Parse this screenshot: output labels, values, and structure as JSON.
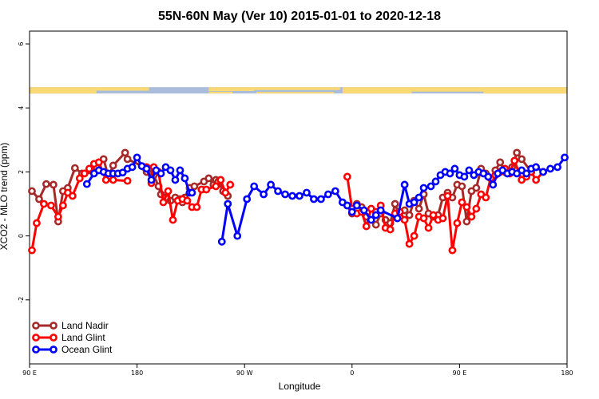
{
  "chart_data": {
    "type": "line",
    "title": "55N-60N May (Ver 10)   2015-01-01 to 2020-12-18",
    "xlabel": "Longitude",
    "ylabel": "XCO2 - MLO trend (ppm)",
    "x_ticks": [
      {
        "pos": 0,
        "label": "90 E"
      },
      {
        "pos": 90,
        "label": "180"
      },
      {
        "pos": 180,
        "label": "90 W"
      },
      {
        "pos": 270,
        "label": "0"
      },
      {
        "pos": 360,
        "label": "90 E"
      },
      {
        "pos": 450,
        "label": "180"
      }
    ],
    "xlim": [
      0,
      450
    ],
    "y_ticks": [
      -2,
      0,
      2,
      4,
      6
    ],
    "ylim": [
      -4,
      6.4
    ],
    "grid": false,
    "legend_position": "bottom-left",
    "map_strip": {
      "ymin": 4.45,
      "ymax": 4.65,
      "land_color": "#f9d976",
      "ocean_color": "#a9bcd9"
    },
    "series": [
      {
        "name": "Land Nadir",
        "color": "#a52a2a",
        "x": [
          2,
          8,
          14,
          20,
          24,
          28,
          32,
          38,
          44,
          50,
          56,
          62,
          66,
          70,
          80,
          82,
          96,
          98,
          100,
          104,
          108,
          110,
          114,
          118,
          122,
          126,
          128,
          130,
          134,
          138,
          146,
          150,
          154,
          156,
          158,
          162,
          166,
          266,
          270,
          274,
          278,
          282,
          286,
          290,
          294,
          298,
          302,
          306,
          310,
          314,
          318,
          322,
          326,
          330,
          334,
          338,
          342,
          346,
          350,
          354,
          358,
          362,
          366,
          370,
          374,
          378,
          382,
          386,
          390,
          394,
          398,
          404,
          408,
          412,
          420,
          424
        ],
        "y": [
          1.4,
          1.15,
          1.62,
          1.6,
          0.45,
          1.4,
          1.5,
          2.12,
          1.95,
          2.05,
          2.15,
          2.4,
          1.85,
          2.2,
          2.6,
          2.4,
          2.15,
          2.0,
          2.1,
          1.9,
          1.55,
          1.3,
          1.2,
          1.1,
          1.2,
          1.15,
          1.05,
          1.2,
          1.5,
          1.55,
          1.7,
          1.8,
          1.6,
          1.75,
          1.7,
          1.4,
          1.25,
          0.95,
          0.7,
          1.0,
          0.9,
          0.6,
          0.5,
          0.35,
          0.7,
          0.5,
          0.4,
          1.0,
          0.6,
          0.8,
          0.65,
          1.1,
          0.85,
          1.3,
          0.7,
          0.6,
          0.65,
          1.2,
          1.35,
          1.2,
          1.6,
          1.55,
          0.45,
          1.4,
          1.5,
          2.1,
          1.95,
          1.8,
          2.05,
          2.3,
          2.0,
          2.15,
          2.6,
          2.4,
          2.0,
          2.15
        ]
      },
      {
        "name": "Land Glint",
        "color": "#ff0000",
        "x": [
          2,
          6,
          12,
          18,
          24,
          28,
          32,
          36,
          42,
          46,
          50,
          54,
          58,
          64,
          70,
          82,
          98,
          102,
          104,
          108,
          112,
          116,
          120,
          124,
          128,
          132,
          136,
          140,
          144,
          148,
          156,
          160,
          164,
          168,
          266,
          270,
          274,
          278,
          282,
          286,
          290,
          294,
          298,
          302,
          306,
          310,
          314,
          318,
          322,
          326,
          330,
          334,
          338,
          342,
          346,
          350,
          354,
          358,
          362,
          366,
          370,
          374,
          378,
          382,
          386,
          390,
          394,
          398,
          402,
          406,
          412,
          416,
          420,
          424,
          430
        ],
        "y": [
          -0.45,
          0.4,
          1.0,
          0.95,
          0.6,
          0.95,
          1.35,
          1.25,
          1.8,
          1.95,
          2.1,
          2.25,
          2.3,
          1.75,
          1.75,
          1.72,
          2.15,
          1.65,
          2.15,
          2.0,
          1.05,
          1.4,
          0.5,
          1.1,
          1.15,
          1.1,
          0.9,
          0.9,
          1.45,
          1.45,
          1.55,
          1.75,
          1.35,
          1.6,
          1.85,
          0.85,
          0.7,
          0.75,
          0.3,
          0.85,
          0.75,
          0.95,
          0.25,
          0.2,
          0.7,
          0.75,
          0.5,
          -0.25,
          0.0,
          0.6,
          0.55,
          0.25,
          0.65,
          0.5,
          0.55,
          1.25,
          -0.45,
          0.4,
          1.05,
          0.9,
          0.6,
          0.85,
          1.3,
          1.2,
          1.8,
          1.9,
          2.0,
          2.1,
          1.95,
          2.35,
          1.75,
          1.85,
          2.0,
          1.75,
          2.0
        ]
      },
      {
        "name": "Ocean Glint",
        "color": "#0000ff",
        "x": [
          48,
          54,
          58,
          62,
          66,
          70,
          74,
          78,
          82,
          86,
          90,
          94,
          98,
          102,
          106,
          110,
          114,
          118,
          122,
          126,
          130,
          134,
          136,
          161,
          166,
          174,
          182,
          188,
          196,
          202,
          208,
          214,
          220,
          226,
          232,
          238,
          244,
          250,
          256,
          262,
          266,
          270,
          274,
          280,
          286,
          290,
          294,
          308,
          314,
          318,
          322,
          326,
          330,
          336,
          340,
          344,
          348,
          352,
          356,
          360,
          364,
          368,
          372,
          376,
          380,
          384,
          388,
          392,
          396,
          400,
          404,
          408,
          412,
          416,
          420,
          424,
          430,
          436,
          442,
          448
        ],
        "y": [
          1.62,
          1.95,
          2.05,
          2.0,
          1.95,
          1.95,
          1.95,
          1.98,
          2.1,
          2.15,
          2.45,
          2.18,
          2.1,
          1.75,
          2.05,
          1.95,
          2.15,
          2.05,
          1.75,
          2.05,
          1.8,
          1.35,
          1.35,
          -0.18,
          1.0,
          0.0,
          1.15,
          1.55,
          1.3,
          1.6,
          1.4,
          1.3,
          1.25,
          1.25,
          1.35,
          1.15,
          1.15,
          1.3,
          1.4,
          1.05,
          0.95,
          0.75,
          0.95,
          0.8,
          0.5,
          0.65,
          0.8,
          0.55,
          1.6,
          1.0,
          1.05,
          1.2,
          1.5,
          1.55,
          1.7,
          1.9,
          2.0,
          1.95,
          2.1,
          1.9,
          1.85,
          2.05,
          1.9,
          2.0,
          1.95,
          1.85,
          1.6,
          1.95,
          2.05,
          1.95,
          2.0,
          1.95,
          2.05,
          1.95,
          2.1,
          2.15,
          2.0,
          2.1,
          2.15,
          2.45
        ]
      }
    ]
  }
}
